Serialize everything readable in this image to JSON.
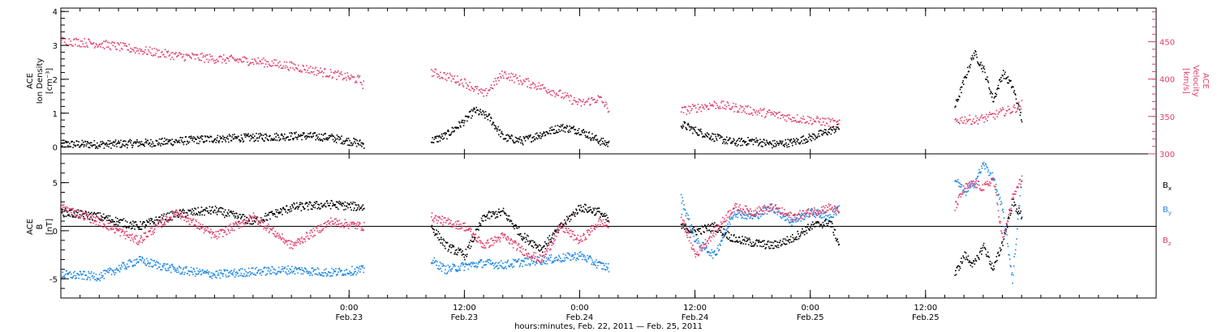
{
  "colors": {
    "black": "#000000",
    "density": "#000000",
    "velocity": "#e0406a",
    "bx": "#000000",
    "by": "#1e88e5",
    "bz": "#e0406a"
  },
  "chart_data": [
    {
      "type": "scatter",
      "panel": "top",
      "left_ylabel_lines": [
        "ACE",
        "Ion Density",
        "[cm⁻³]"
      ],
      "right_ylabel_lines": [
        "ACE",
        "Velocity",
        "[km/s]"
      ],
      "ylim_left": [
        -0.2,
        4.1
      ],
      "ylim_right": [
        300,
        495
      ],
      "left_ticks": [
        "0",
        "1",
        "2",
        "3",
        "4"
      ],
      "right_ticks": [
        "300",
        "350",
        "400",
        "450"
      ],
      "x_range_hours": [
        -30,
        84
      ],
      "data_gaps_hours": [
        [
          1.5,
          8.5
        ],
        [
          27,
          34.5
        ],
        [
          51,
          63
        ],
        [
          70,
          84
        ]
      ],
      "series": [
        {
          "key": "density",
          "axis": "left",
          "segments": [
            {
              "x": [
                -30,
                -25,
                -20,
                -15,
                -10,
                -5,
                -2,
                1.5
              ],
              "y": [
                0.1,
                0.1,
                0.15,
                0.25,
                0.3,
                0.35,
                0.3,
                0.1
              ]
            },
            {
              "x": [
                8.5,
                10,
                12,
                13,
                14.5,
                16,
                18,
                20,
                22,
                24,
                26,
                27
              ],
              "y": [
                0.2,
                0.35,
                0.8,
                1.1,
                0.9,
                0.3,
                0.2,
                0.4,
                0.6,
                0.5,
                0.2,
                0.1
              ]
            },
            {
              "x": [
                34.5,
                36,
                38,
                40,
                42,
                44,
                46,
                48,
                50,
                51
              ],
              "y": [
                0.7,
                0.5,
                0.3,
                0.15,
                0.2,
                0.1,
                0.15,
                0.3,
                0.5,
                0.6
              ]
            },
            {
              "x": [
                63,
                64,
                65,
                66,
                67,
                68,
                69,
                70
              ],
              "y": [
                1.2,
                2.0,
                2.8,
                2.3,
                1.4,
                2.2,
                1.8,
                0.8
              ]
            }
          ]
        },
        {
          "key": "velocity",
          "axis": "right",
          "segments": [
            {
              "x": [
                -30,
                -26,
                -22,
                -18,
                -14,
                -10,
                -6,
                -2,
                1,
                1.5
              ],
              "y": [
                452,
                448,
                440,
                432,
                428,
                425,
                418,
                408,
                400,
                392
              ]
            },
            {
              "x": [
                8.5,
                10,
                12,
                14,
                16,
                18,
                20,
                22,
                24,
                26,
                27
              ],
              "y": [
                410,
                405,
                396,
                380,
                408,
                398,
                390,
                380,
                368,
                375,
                360
              ]
            },
            {
              "x": [
                34.5,
                36,
                38,
                40,
                42,
                44,
                46,
                48,
                50,
                51
              ],
              "y": [
                358,
                362,
                367,
                363,
                358,
                354,
                349,
                346,
                343,
                340
              ]
            },
            {
              "x": [
                63,
                64,
                65,
                66,
                67,
                68,
                69,
                70
              ],
              "y": [
                345,
                347,
                346,
                348,
                352,
                357,
                360,
                367
              ]
            }
          ]
        }
      ]
    },
    {
      "type": "scatter",
      "panel": "bottom",
      "left_ylabel_lines": [
        "ACE",
        "B",
        "[nT]"
      ],
      "ylim": [
        -7,
        8
      ],
      "left_ticks": [
        "-5",
        "0",
        "5"
      ],
      "legend": [
        "Bx",
        "By",
        "Bz"
      ],
      "x_range_hours": [
        -30,
        84
      ],
      "data_gaps_hours": [
        [
          1.5,
          8.5
        ],
        [
          27,
          34.5
        ],
        [
          51,
          63
        ],
        [
          70,
          84
        ]
      ],
      "series": [
        {
          "key": "bx",
          "segments": [
            {
              "x": [
                -30,
                -26,
                -22,
                -18,
                -14,
                -10,
                -6,
                -2,
                1.5
              ],
              "y": [
                2,
                1.5,
                0.5,
                1.8,
                2.2,
                1.0,
                2.5,
                2.8,
                2.5
              ]
            },
            {
              "x": [
                8.5,
                10,
                12,
                14,
                16,
                18,
                20,
                22,
                24,
                26,
                27
              ],
              "y": [
                0.5,
                -1.5,
                -2.5,
                1.5,
                2.0,
                -0.5,
                -1.8,
                0.5,
                2.5,
                2.0,
                1.0
              ]
            },
            {
              "x": [
                34.5,
                36,
                38,
                40,
                42,
                44,
                46,
                48,
                50,
                51
              ],
              "y": [
                0.5,
                0,
                0.5,
                -0.8,
                -1.2,
                -1.5,
                -0.8,
                0.5,
                1.0,
                -1.5
              ]
            },
            {
              "x": [
                63,
                64,
                65,
                66,
                67,
                68,
                69,
                70
              ],
              "y": [
                -4.5,
                -2.5,
                -3.5,
                -1.5,
                -4.0,
                -1.0,
                3.0,
                1.5
              ]
            }
          ]
        },
        {
          "key": "by",
          "segments": [
            {
              "x": [
                -30,
                -26,
                -22,
                -18,
                -14,
                -10,
                -6,
                -2,
                1.5
              ],
              "y": [
                -4.5,
                -4.7,
                -3.0,
                -4.0,
                -4.5,
                -4.2,
                -4.0,
                -4.3,
                -4.0
              ]
            },
            {
              "x": [
                8.5,
                10,
                12,
                14,
                16,
                18,
                20,
                22,
                24,
                26,
                27
              ],
              "y": [
                -3.0,
                -4.0,
                -3.6,
                -3.3,
                -3.5,
                -3.2,
                -3.0,
                -2.8,
                -2.5,
                -3.5,
                -3.8
              ]
            },
            {
              "x": [
                34.5,
                36,
                38,
                40,
                42,
                44,
                46,
                48,
                50,
                51
              ],
              "y": [
                3.5,
                -1.0,
                -2.5,
                2.0,
                1.5,
                2.5,
                1.0,
                2.0,
                1.5,
                2.5
              ]
            },
            {
              "x": [
                63,
                64,
                65,
                66,
                67,
                68,
                69,
                70
              ],
              "y": [
                5.5,
                4.0,
                5.0,
                7.0,
                5.5,
                2.0,
                -5.0,
                6.0
              ]
            }
          ]
        },
        {
          "key": "bz",
          "segments": [
            {
              "x": [
                -30,
                -26,
                -22,
                -18,
                -14,
                -10,
                -6,
                -2,
                1.5
              ],
              "y": [
                2.5,
                1.0,
                -1.0,
                2.0,
                -0.5,
                1.5,
                -1.5,
                1.0,
                0.5
              ]
            },
            {
              "x": [
                8.5,
                10,
                12,
                14,
                16,
                18,
                20,
                22,
                24,
                26,
                27
              ],
              "y": [
                1.5,
                1.0,
                0.5,
                -1.5,
                -0.5,
                -2.0,
                -3.0,
                0.5,
                -1.0,
                1.0,
                0.5
              ]
            },
            {
              "x": [
                34.5,
                36,
                38,
                40,
                42,
                44,
                46,
                48,
                50,
                51
              ],
              "y": [
                1.5,
                -2.5,
                0,
                2.5,
                2.0,
                2.5,
                1.5,
                2.0,
                2.5,
                2.0
              ]
            },
            {
              "x": [
                63,
                64,
                65,
                66,
                67,
                68,
                69,
                70
              ],
              "y": [
                2.5,
                4.5,
                5.0,
                4.5,
                5.5,
                -1.0,
                3.5,
                5.5
              ]
            }
          ]
        }
      ]
    }
  ],
  "legend_labels": {
    "bx": {
      "base": "B",
      "sub": "x"
    },
    "by": {
      "base": "B",
      "sub": "y"
    },
    "bz": {
      "base": "B",
      "sub": "z"
    }
  },
  "x_axis": {
    "ticks": [
      {
        "hours": 0,
        "line1": "0:00",
        "line2": "Feb.23"
      },
      {
        "hours": 12,
        "line1": "12:00",
        "line2": "Feb.23"
      },
      {
        "hours": 24,
        "line1": "0:00",
        "line2": "Feb.24"
      },
      {
        "hours": 36,
        "line1": "12:00",
        "line2": "Feb.24"
      },
      {
        "hours": 48,
        "line1": "0:00",
        "line2": "Feb.25"
      },
      {
        "hours": 60,
        "line1": "12:00",
        "line2": "Feb.25"
      }
    ],
    "label": "hours:minutes, Feb. 22, 2011 — Feb. 25, 2011"
  }
}
